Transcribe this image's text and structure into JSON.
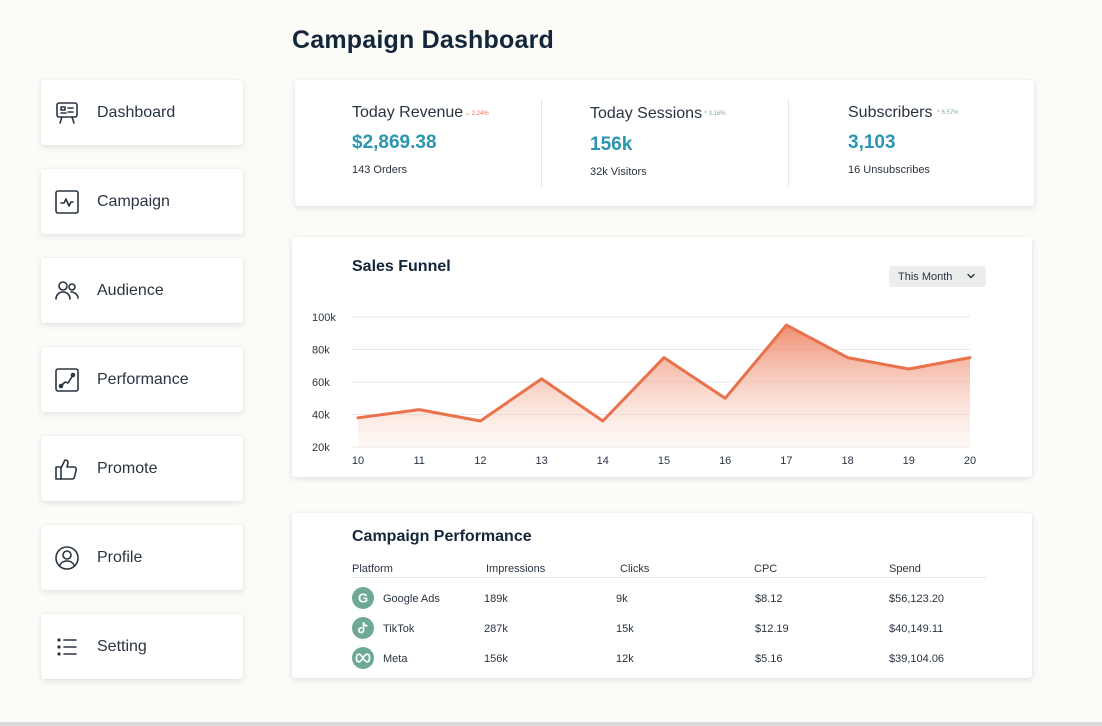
{
  "header": {
    "title": "Campaign Dashboard"
  },
  "sidebar": {
    "items": [
      {
        "label": "Dashboard",
        "icon": "presentation-board-icon"
      },
      {
        "label": "Campaign",
        "icon": "activity-chart-icon"
      },
      {
        "label": "Audience",
        "icon": "users-icon"
      },
      {
        "label": "Performance",
        "icon": "trend-line-icon"
      },
      {
        "label": "Promote",
        "icon": "thumbs-up-icon"
      },
      {
        "label": "Profile",
        "icon": "user-circle-icon"
      },
      {
        "label": "Setting",
        "icon": "list-icon"
      }
    ]
  },
  "stats": [
    {
      "title": "Today Revenue",
      "delta": "2.24%",
      "delta_direction": "down",
      "value": "$2,869.38",
      "sub": "143 Orders"
    },
    {
      "title": "Today Sessions",
      "delta": "3.16%",
      "delta_direction": "up",
      "value": "156k",
      "sub": "32k Visitors"
    },
    {
      "title": "Subscribers",
      "delta": "6.57%",
      "delta_direction": "up",
      "value": "3,103",
      "sub": "16 Unsubscribes"
    }
  ],
  "colors": {
    "accent_teal": "#2b96b0",
    "funnel_line": "#e9714b",
    "delta_down": "#e9714b",
    "delta_up": "#7fa8b2",
    "logo_bg": "#6ea896"
  },
  "funnel": {
    "title": "Sales Funnel",
    "range_select": "This Month"
  },
  "chart_data": {
    "type": "area",
    "title": "Sales Funnel",
    "x": [
      "10",
      "11",
      "12",
      "13",
      "14",
      "15",
      "16",
      "17",
      "18",
      "19",
      "20"
    ],
    "series": [
      {
        "values": [
          38000,
          43000,
          36000,
          62000,
          36000,
          75000,
          50000,
          95000,
          75000,
          68000,
          75000
        ]
      }
    ],
    "yticks": [
      "20k",
      "40k",
      "60k",
      "80k",
      "100k"
    ],
    "ylim": [
      20000,
      100000
    ],
    "grid": true
  },
  "campaign_table": {
    "title": "Campaign Performance",
    "columns": [
      "Platform",
      "Impressions",
      "Clicks",
      "CPC",
      "Spend"
    ],
    "rows": [
      {
        "platform": "Google Ads",
        "logo": "google-g-icon",
        "impressions": "189k",
        "clicks": "9k",
        "cpc": "$8.12",
        "spend": "$56,123.20"
      },
      {
        "platform": "TikTok",
        "logo": "tiktok-icon",
        "impressions": "287k",
        "clicks": "15k",
        "cpc": "$12.19",
        "spend": "$40,149.11"
      },
      {
        "platform": "Meta",
        "logo": "meta-infinity-icon",
        "impressions": "156k",
        "clicks": "12k",
        "cpc": "$5.16",
        "spend": "$39,104.06"
      }
    ]
  }
}
